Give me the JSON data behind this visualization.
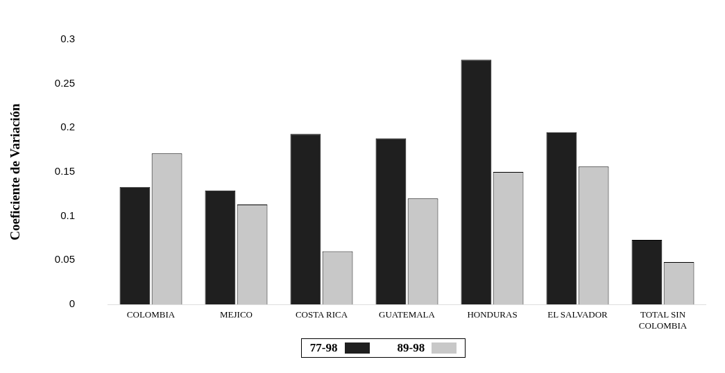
{
  "chart_data": {
    "type": "bar",
    "ylabel": "Coeficiente de Variación",
    "categories": [
      "COLOMBIA",
      "MEJICO",
      "COSTA RICA",
      "GUATEMALA",
      "HONDURAS",
      "EL SALVADOR",
      "TOTAL SIN COLOMBIA"
    ],
    "series": [
      {
        "name": "77-98",
        "color": "#1f1f1f",
        "values": [
          0.133,
          0.129,
          0.193,
          0.188,
          0.277,
          0.195,
          0.073
        ]
      },
      {
        "name": "89-98",
        "color": "#c8c8c8",
        "values": [
          0.171,
          0.113,
          0.06,
          0.12,
          0.15,
          0.156,
          0.048
        ]
      }
    ],
    "ylim": [
      0,
      0.3
    ],
    "yticks": [
      0,
      0.05,
      0.1,
      0.15,
      0.2,
      0.25,
      0.3
    ],
    "grid": false,
    "legend": "bottom"
  }
}
